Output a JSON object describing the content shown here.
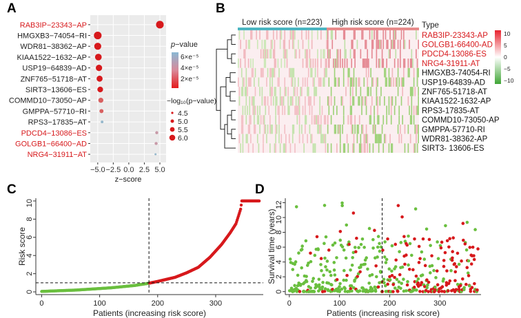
{
  "colors": {
    "red": "#d7191c",
    "green": "#6abf3f",
    "teal": "#4bb5c1",
    "pink": "#e78b8b",
    "grey": "#ebebeb"
  },
  "panels": [
    {
      "label": "A",
      "xlabel": "z−score",
      "xticks": [
        "−5.0",
        "−2.5",
        "0.0",
        "2.5",
        "5.0"
      ],
      "genes": [
        {
          "name": "RAB3IP−23343−AP",
          "z": 5.0,
          "logp": 6.0,
          "color": "red"
        },
        {
          "name": "HMGXB3−74054−RI",
          "z": -5.0,
          "logp": 6.0,
          "color": "black"
        },
        {
          "name": "WDR81−38362−AP",
          "z": -5.0,
          "logp": 5.8,
          "color": "black"
        },
        {
          "name": "KIAA1522−1632−AP",
          "z": -4.9,
          "logp": 5.7,
          "color": "black"
        },
        {
          "name": "USP19−64839−AD",
          "z": -4.8,
          "logp": 5.6,
          "color": "black"
        },
        {
          "name": "ZNF765−51718−AT",
          "z": -4.7,
          "logp": 5.5,
          "color": "black"
        },
        {
          "name": "SIRT3−13606−ES",
          "z": -4.6,
          "logp": 5.4,
          "color": "black"
        },
        {
          "name": "COMMD10−73050−AP",
          "z": -4.5,
          "logp": 5.2,
          "color": "black"
        },
        {
          "name": "GMPPA−57710−RI",
          "z": -4.4,
          "logp": 4.9,
          "color": "black"
        },
        {
          "name": "RPS3−17835−AT",
          "z": -4.3,
          "logp": 4.5,
          "color": "black"
        },
        {
          "name": "PDCD4−13086−ES",
          "z": 4.5,
          "logp": 4.6,
          "color": "red"
        },
        {
          "name": "GOLGB1−66400−AD",
          "z": 4.4,
          "logp": 4.6,
          "color": "red"
        },
        {
          "name": "NRG4−31911−AT",
          "z": 4.3,
          "logp": 4.3,
          "color": "red"
        }
      ],
      "legend_p": {
        "title_italic": "p",
        "title_rest": "−value",
        "ticks": [
          "6×e⁻⁵",
          "4×e⁻⁵",
          "2×e⁻⁵"
        ]
      },
      "legend_size": {
        "title": "−log₁₀(p−value)",
        "ticks": [
          "4.5",
          "5.0",
          "5.5",
          "6.0"
        ]
      }
    },
    {
      "label": "B",
      "low": "Low risk score (n=223)",
      "high": "High risk score (n=224)",
      "type": "Type",
      "genes": [
        {
          "name": "RAB3IP-23343-AP",
          "color": "red"
        },
        {
          "name": "GOLGB1-66400-AD",
          "color": "red"
        },
        {
          "name": "PDCD4-13086-ES",
          "color": "red"
        },
        {
          "name": "NRG4-31911-AT",
          "color": "red"
        },
        {
          "name": "HMGXB3-74054-RI",
          "color": "black"
        },
        {
          "name": "USP19-64839-AD",
          "color": "black"
        },
        {
          "name": "ZNF765-51718-AT",
          "color": "black"
        },
        {
          "name": "KIAA1522-1632-AP",
          "color": "black"
        },
        {
          "name": "RPS3-17835-AT",
          "color": "black"
        },
        {
          "name": "COMMD10-73050-AP",
          "color": "black"
        },
        {
          "name": "GMPPA-57710-RI",
          "color": "black"
        },
        {
          "name": "WDR81-38362-AP",
          "color": "black"
        },
        {
          "name": "SIRT3- 13606-ES",
          "color": "black"
        }
      ],
      "scale": [
        "10",
        "5",
        "0",
        "−5",
        "−10"
      ]
    },
    {
      "label": "C",
      "xlabel": "Patients (increasing risk score)",
      "ylabel": "Risk score",
      "xticks": [
        "0",
        "100",
        "200",
        "300"
      ],
      "yticks": [
        "0",
        "2",
        "4",
        "6",
        "8",
        "10"
      ]
    },
    {
      "label": "D",
      "xlabel": "Patients (increasing risk score)",
      "ylabel": "Survival time (years)",
      "xticks": [
        "0",
        "100",
        "200",
        "300"
      ],
      "yticks": [
        "0",
        "2",
        "4",
        "6",
        "8",
        "10",
        "12"
      ]
    }
  ],
  "chart_data": [
    {
      "type": "scatter",
      "panel": "A",
      "xlim": [
        -6.2,
        6.0
      ],
      "categories": [
        "RAB3IP−23343−AP",
        "HMGXB3−74054−RI",
        "WDR81−38362−AP",
        "KIAA1522−1632−AP",
        "USP19−64839−AD",
        "ZNF765−51718−AT",
        "SIRT3−13606−ES",
        "COMMD10−73050−AP",
        "GMPPA−57710−RI",
        "RPS3−17835−AT",
        "PDCD4−13086−ES",
        "GOLGB1−66400−AD",
        "NRG4−31911−AT"
      ],
      "z": [
        5.0,
        -5.0,
        -5.0,
        -4.9,
        -4.8,
        -4.7,
        -4.6,
        -4.5,
        -4.4,
        -4.3,
        4.5,
        4.4,
        4.3
      ],
      "neg_log10_p": [
        6.0,
        6.0,
        5.8,
        5.7,
        5.6,
        5.5,
        5.4,
        5.2,
        4.9,
        4.5,
        4.6,
        4.6,
        4.3
      ]
    },
    {
      "type": "heatmap",
      "panel": "B",
      "n_low": 223,
      "n_high": 224,
      "rows": 13,
      "value_range": [
        -10,
        10
      ]
    },
    {
      "type": "scatter",
      "panel": "C",
      "xlim": [
        -10,
        382
      ],
      "ylim": [
        -0.3,
        10.3
      ],
      "cutoff_x": 185,
      "cutoff_y": 1.0,
      "curve_points": [
        [
          0,
          0.05
        ],
        [
          60,
          0.2
        ],
        [
          120,
          0.45
        ],
        [
          160,
          0.7
        ],
        [
          185,
          0.95
        ],
        [
          200,
          1.15
        ],
        [
          230,
          1.6
        ],
        [
          250,
          2.1
        ],
        [
          270,
          2.7
        ],
        [
          290,
          3.8
        ],
        [
          310,
          5.2
        ],
        [
          325,
          6.5
        ],
        [
          335,
          7.5
        ],
        [
          343,
          9.1
        ],
        [
          345,
          10
        ],
        [
          375,
          10
        ]
      ],
      "series": [
        {
          "name": "low",
          "color": "green",
          "x_range": [
            0,
            185
          ]
        },
        {
          "name": "high",
          "color": "red",
          "x_range": [
            186,
            375
          ]
        }
      ]
    },
    {
      "type": "scatter",
      "panel": "D",
      "xlim": [
        -8,
        382
      ],
      "ylim": [
        -0.4,
        12.6
      ],
      "cutoff_x": 185,
      "n_points": 447
    }
  ]
}
